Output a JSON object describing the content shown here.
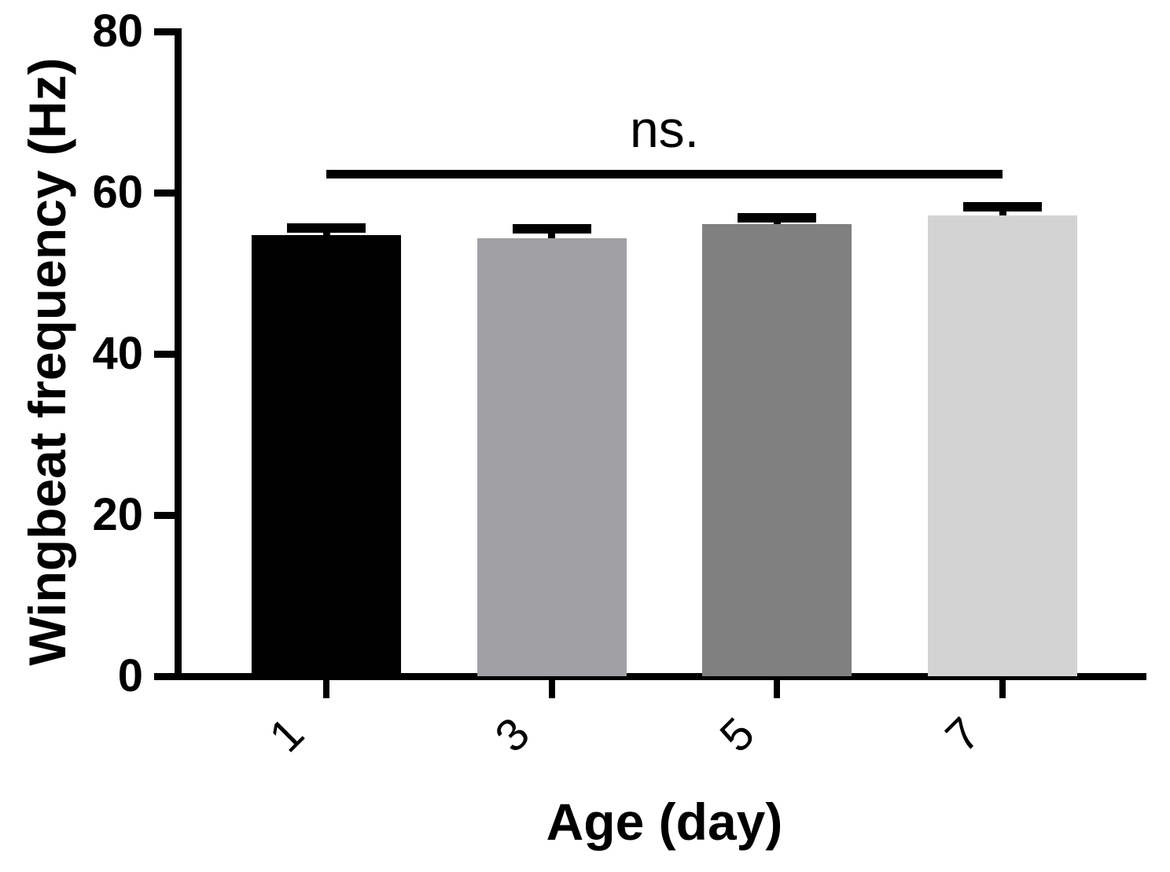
{
  "figure": {
    "background": "#ffffff",
    "text_color": "#000000"
  },
  "chart_data": {
    "type": "bar",
    "title": "",
    "xlabel": "Age (day)",
    "ylabel": "Wingbeat frequency (Hz)",
    "categories": [
      "1",
      "3",
      "5",
      "7"
    ],
    "values": [
      54.7,
      54.3,
      56.1,
      57.2
    ],
    "errors_plus": [
      0.9,
      1.2,
      0.8,
      1.0
    ],
    "bar_colors": [
      "#000000",
      "#a0a0a5",
      "#808080",
      "#d3d3d3"
    ],
    "axis_color": "#000000",
    "ylim": [
      0,
      80
    ],
    "yticks": [
      "0",
      "20",
      "40",
      "60",
      "80"
    ],
    "xtick_rotation_deg": -45,
    "grid": false,
    "legend": null,
    "error_bar_style": "cap-up",
    "annotation": {
      "label": "ns.",
      "from_category": "1",
      "to_category": "7",
      "y_value": 62.3
    }
  }
}
